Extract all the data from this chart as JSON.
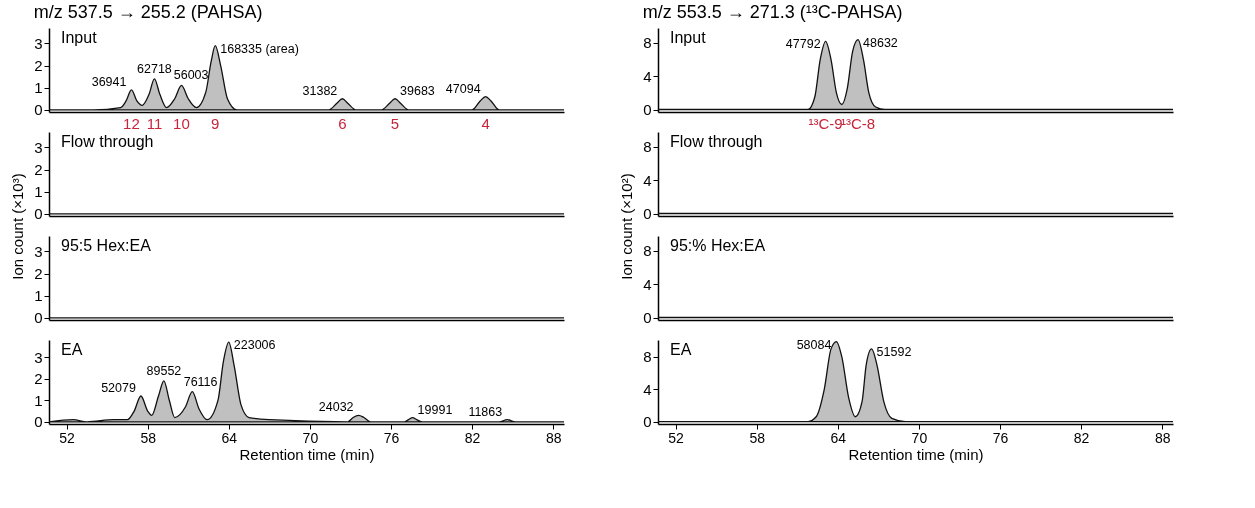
{
  "chart_data": [
    {
      "type": "area",
      "title": "m/z 537.5 → 255.2 (PAHSA)",
      "xlim": [
        50.7,
        88.8
      ],
      "tick_labels": "y",
      "xticks": [
        52,
        58,
        64,
        70,
        76,
        82,
        88
      ],
      "ylim": [
        -0.1,
        3.7
      ],
      "yticks": [
        0,
        1,
        2,
        3
      ],
      "x": [
        50.7,
        54,
        56.0,
        56.4,
        56.8,
        57.2,
        57.6,
        58.1,
        58.5,
        58.9,
        59.4,
        60.0,
        60.5,
        61.0,
        61.6,
        62.3,
        62.7,
        63.0,
        63.4,
        63.9,
        64.6,
        71.4,
        72.0,
        72.4,
        72.8,
        73.4,
        75.3,
        75.9,
        76.3,
        76.7,
        77.3,
        82.0,
        82.6,
        83.0,
        83.4,
        84.0,
        88.8
      ],
      "series": [
        {
          "color": "#c0c0c0",
          "values": [
            0,
            0,
            0.1,
            0.4,
            0.9,
            0.4,
            0.2,
            0.7,
            1.4,
            0.7,
            0.1,
            0.5,
            1.1,
            0.5,
            0.1,
            0.8,
            2.2,
            2.9,
            2.0,
            0.5,
            0,
            0,
            0.3,
            0.5,
            0.3,
            0,
            0,
            0.3,
            0.5,
            0.3,
            0,
            0,
            0.4,
            0.6,
            0.4,
            0,
            0
          ]
        }
      ],
      "annotations": [
        "Input",
        {
          "text": "36941",
          "x": 56.8,
          "y": 0.9
        },
        {
          "text": "62718",
          "x": 58.5,
          "y": 1.4
        },
        {
          "text": "56003",
          "x": 60.5,
          "y": 1.1
        },
        {
          "text": "168335 (area)",
          "x": 63.0,
          "y": 2.9
        },
        {
          "text": "31382",
          "x": 72.4,
          "y": 0.5
        },
        {
          "text": "39683",
          "x": 76.3,
          "y": 0.5
        },
        {
          "text": "47094",
          "x": 83.0,
          "y": 0.6
        },
        "12",
        "11",
        "10",
        "9",
        "6",
        "5",
        "4"
      ]
    },
    {
      "type": "line",
      "ylabel": "Ion count (×10³)",
      "tick_labels": "y",
      "xlim": [
        50.7,
        88.8
      ],
      "xticks": [
        52,
        58,
        64,
        70,
        76,
        82,
        88
      ],
      "ylim": [
        -0.1,
        3.7
      ],
      "yticks": [
        0,
        1,
        2,
        3
      ],
      "x": [
        50.7,
        60,
        70,
        80,
        88.8
      ],
      "series": [
        {
          "color": "#111111",
          "values": [
            0,
            0,
            0,
            0,
            0
          ]
        }
      ],
      "annotations": [
        "Flow through"
      ]
    },
    {
      "type": "line",
      "tick_labels": "y",
      "xlim": [
        50.7,
        88.8
      ],
      "xticks": [
        52,
        58,
        64,
        70,
        76,
        82,
        88
      ],
      "ylim": [
        -0.1,
        3.7
      ],
      "yticks": [
        0,
        1,
        2,
        3
      ],
      "x": [
        50.7,
        60,
        70,
        80,
        88.8
      ],
      "series": [
        {
          "color": "#111111",
          "values": [
            0,
            0,
            0,
            0,
            0
          ]
        }
      ],
      "annotations": [
        "95:5 Hex:EA"
      ]
    },
    {
      "type": "area",
      "xlabel": "Retention time (min)",
      "xlim": [
        50.7,
        88.8
      ],
      "xticks": [
        52,
        58,
        64,
        70,
        76,
        82,
        88
      ],
      "ylim": [
        -0.1,
        3.8
      ],
      "yticks": [
        0,
        1,
        2,
        3
      ],
      "x": [
        50.7,
        52.5,
        53.5,
        55.5,
        56.5,
        57.0,
        57.5,
        58.0,
        58.3,
        58.8,
        59.2,
        59.6,
        60.0,
        60.8,
        61.3,
        61.8,
        62.4,
        63.2,
        63.6,
        64.0,
        64.4,
        64.9,
        65.5,
        67,
        72.8,
        73.2,
        73.6,
        74.0,
        74.5,
        77.0,
        77.3,
        77.6,
        77.9,
        78.3,
        84.0,
        84.6,
        85.2,
        88.8
      ],
      "series": [
        {
          "color": "#c0c0c0",
          "values": [
            0,
            0.1,
            0,
            0.1,
            0.1,
            0.5,
            1.2,
            0.5,
            0.3,
            1.2,
            1.9,
            1.0,
            0.2,
            0.7,
            1.4,
            0.6,
            0.1,
            1.0,
            2.8,
            3.7,
            2.6,
            0.8,
            0.2,
            0.1,
            0,
            0.2,
            0.3,
            0.2,
            0,
            0,
            0.1,
            0.2,
            0.1,
            0,
            0,
            0.1,
            0,
            0
          ]
        }
      ],
      "annotations": [
        "EA",
        {
          "text": "52079",
          "x": 57.5,
          "y": 1.2
        },
        {
          "text": "89552",
          "x": 59.2,
          "y": 1.9
        },
        {
          "text": "76116",
          "x": 61.3,
          "y": 1.4
        },
        {
          "text": "223006",
          "x": 64.0,
          "y": 3.7
        },
        {
          "text": "24032",
          "x": 73.6,
          "y": 0.3
        },
        {
          "text": "19991",
          "x": 77.6,
          "y": 0.2
        },
        {
          "text": "11863",
          "x": 84.6,
          "y": 0.1
        }
      ]
    },
    {
      "type": "area",
      "title": "m/z 553.5 → 271.3 (¹³C-PAHSA)",
      "xlim": [
        50.7,
        88.8
      ],
      "tick_labels": "y",
      "xticks": [
        52,
        58,
        64,
        70,
        76,
        82,
        88
      ],
      "ylim": [
        -0.3,
        9.8
      ],
      "yticks": [
        0,
        4,
        8
      ],
      "x": [
        50.7,
        61.8,
        62.3,
        62.7,
        63.1,
        63.5,
        63.9,
        64.3,
        64.7,
        65.1,
        65.5,
        65.9,
        66.3,
        66.8,
        67.5,
        88.8
      ],
      "series": [
        {
          "color": "#c0c0c0",
          "values": [
            0,
            0,
            1.5,
            6.0,
            8.2,
            6.0,
            2.0,
            0.6,
            2.5,
            7.0,
            8.4,
            6.0,
            2.0,
            0.3,
            0,
            0
          ]
        }
      ],
      "annotations": [
        "Input",
        {
          "text": "47792",
          "x": 63.1,
          "y": 8.2
        },
        {
          "text": "48632",
          "x": 65.5,
          "y": 8.4
        },
        "¹³C-9",
        "¹³C-8"
      ]
    },
    {
      "type": "line",
      "ylabel": "Ion count (×10²)",
      "tick_labels": "y",
      "xlim": [
        50.7,
        88.8
      ],
      "xticks": [
        52,
        58,
        64,
        70,
        76,
        82,
        88
      ],
      "ylim": [
        -0.3,
        9.8
      ],
      "yticks": [
        0,
        4,
        8
      ],
      "x": [
        50.7,
        60,
        70,
        80,
        88.8
      ],
      "series": [
        {
          "color": "#111111",
          "values": [
            0,
            0,
            0,
            0,
            0
          ]
        }
      ],
      "annotations": [
        "Flow through"
      ]
    },
    {
      "type": "line",
      "tick_labels": "y",
      "xlim": [
        50.7,
        88.8
      ],
      "xticks": [
        52,
        58,
        64,
        70,
        76,
        82,
        88
      ],
      "ylim": [
        -0.3,
        9.8
      ],
      "yticks": [
        0,
        4,
        8
      ],
      "x": [
        50.7,
        60,
        70,
        80,
        88.8
      ],
      "series": [
        {
          "color": "#111111",
          "values": [
            0,
            0,
            0,
            0,
            0
          ]
        }
      ],
      "annotations": [
        "95:% Hex:EA"
      ]
    },
    {
      "type": "area",
      "xlabel": "Retention time (min)",
      "xlim": [
        50.7,
        88.8
      ],
      "xticks": [
        52,
        58,
        64,
        70,
        76,
        82,
        88
      ],
      "ylim": [
        -0.3,
        10.1
      ],
      "yticks": [
        0,
        4,
        8
      ],
      "x": [
        50.7,
        61.8,
        62.4,
        63.0,
        63.5,
        63.9,
        64.3,
        64.8,
        65.3,
        65.8,
        66.1,
        66.5,
        66.9,
        67.4,
        68.0,
        69,
        88.8
      ],
      "series": [
        {
          "color": "#c0c0c0",
          "values": [
            0,
            0,
            0.6,
            4.0,
            9.0,
            9.9,
            8.0,
            3.0,
            0.6,
            2.5,
            7.0,
            9.0,
            7.0,
            2.5,
            0.4,
            0,
            0
          ]
        }
      ],
      "annotations": [
        "EA",
        {
          "text": "58084",
          "x": 63.9,
          "y": 9.9
        },
        {
          "text": "51592",
          "x": 66.5,
          "y": 9.0
        }
      ]
    }
  ]
}
